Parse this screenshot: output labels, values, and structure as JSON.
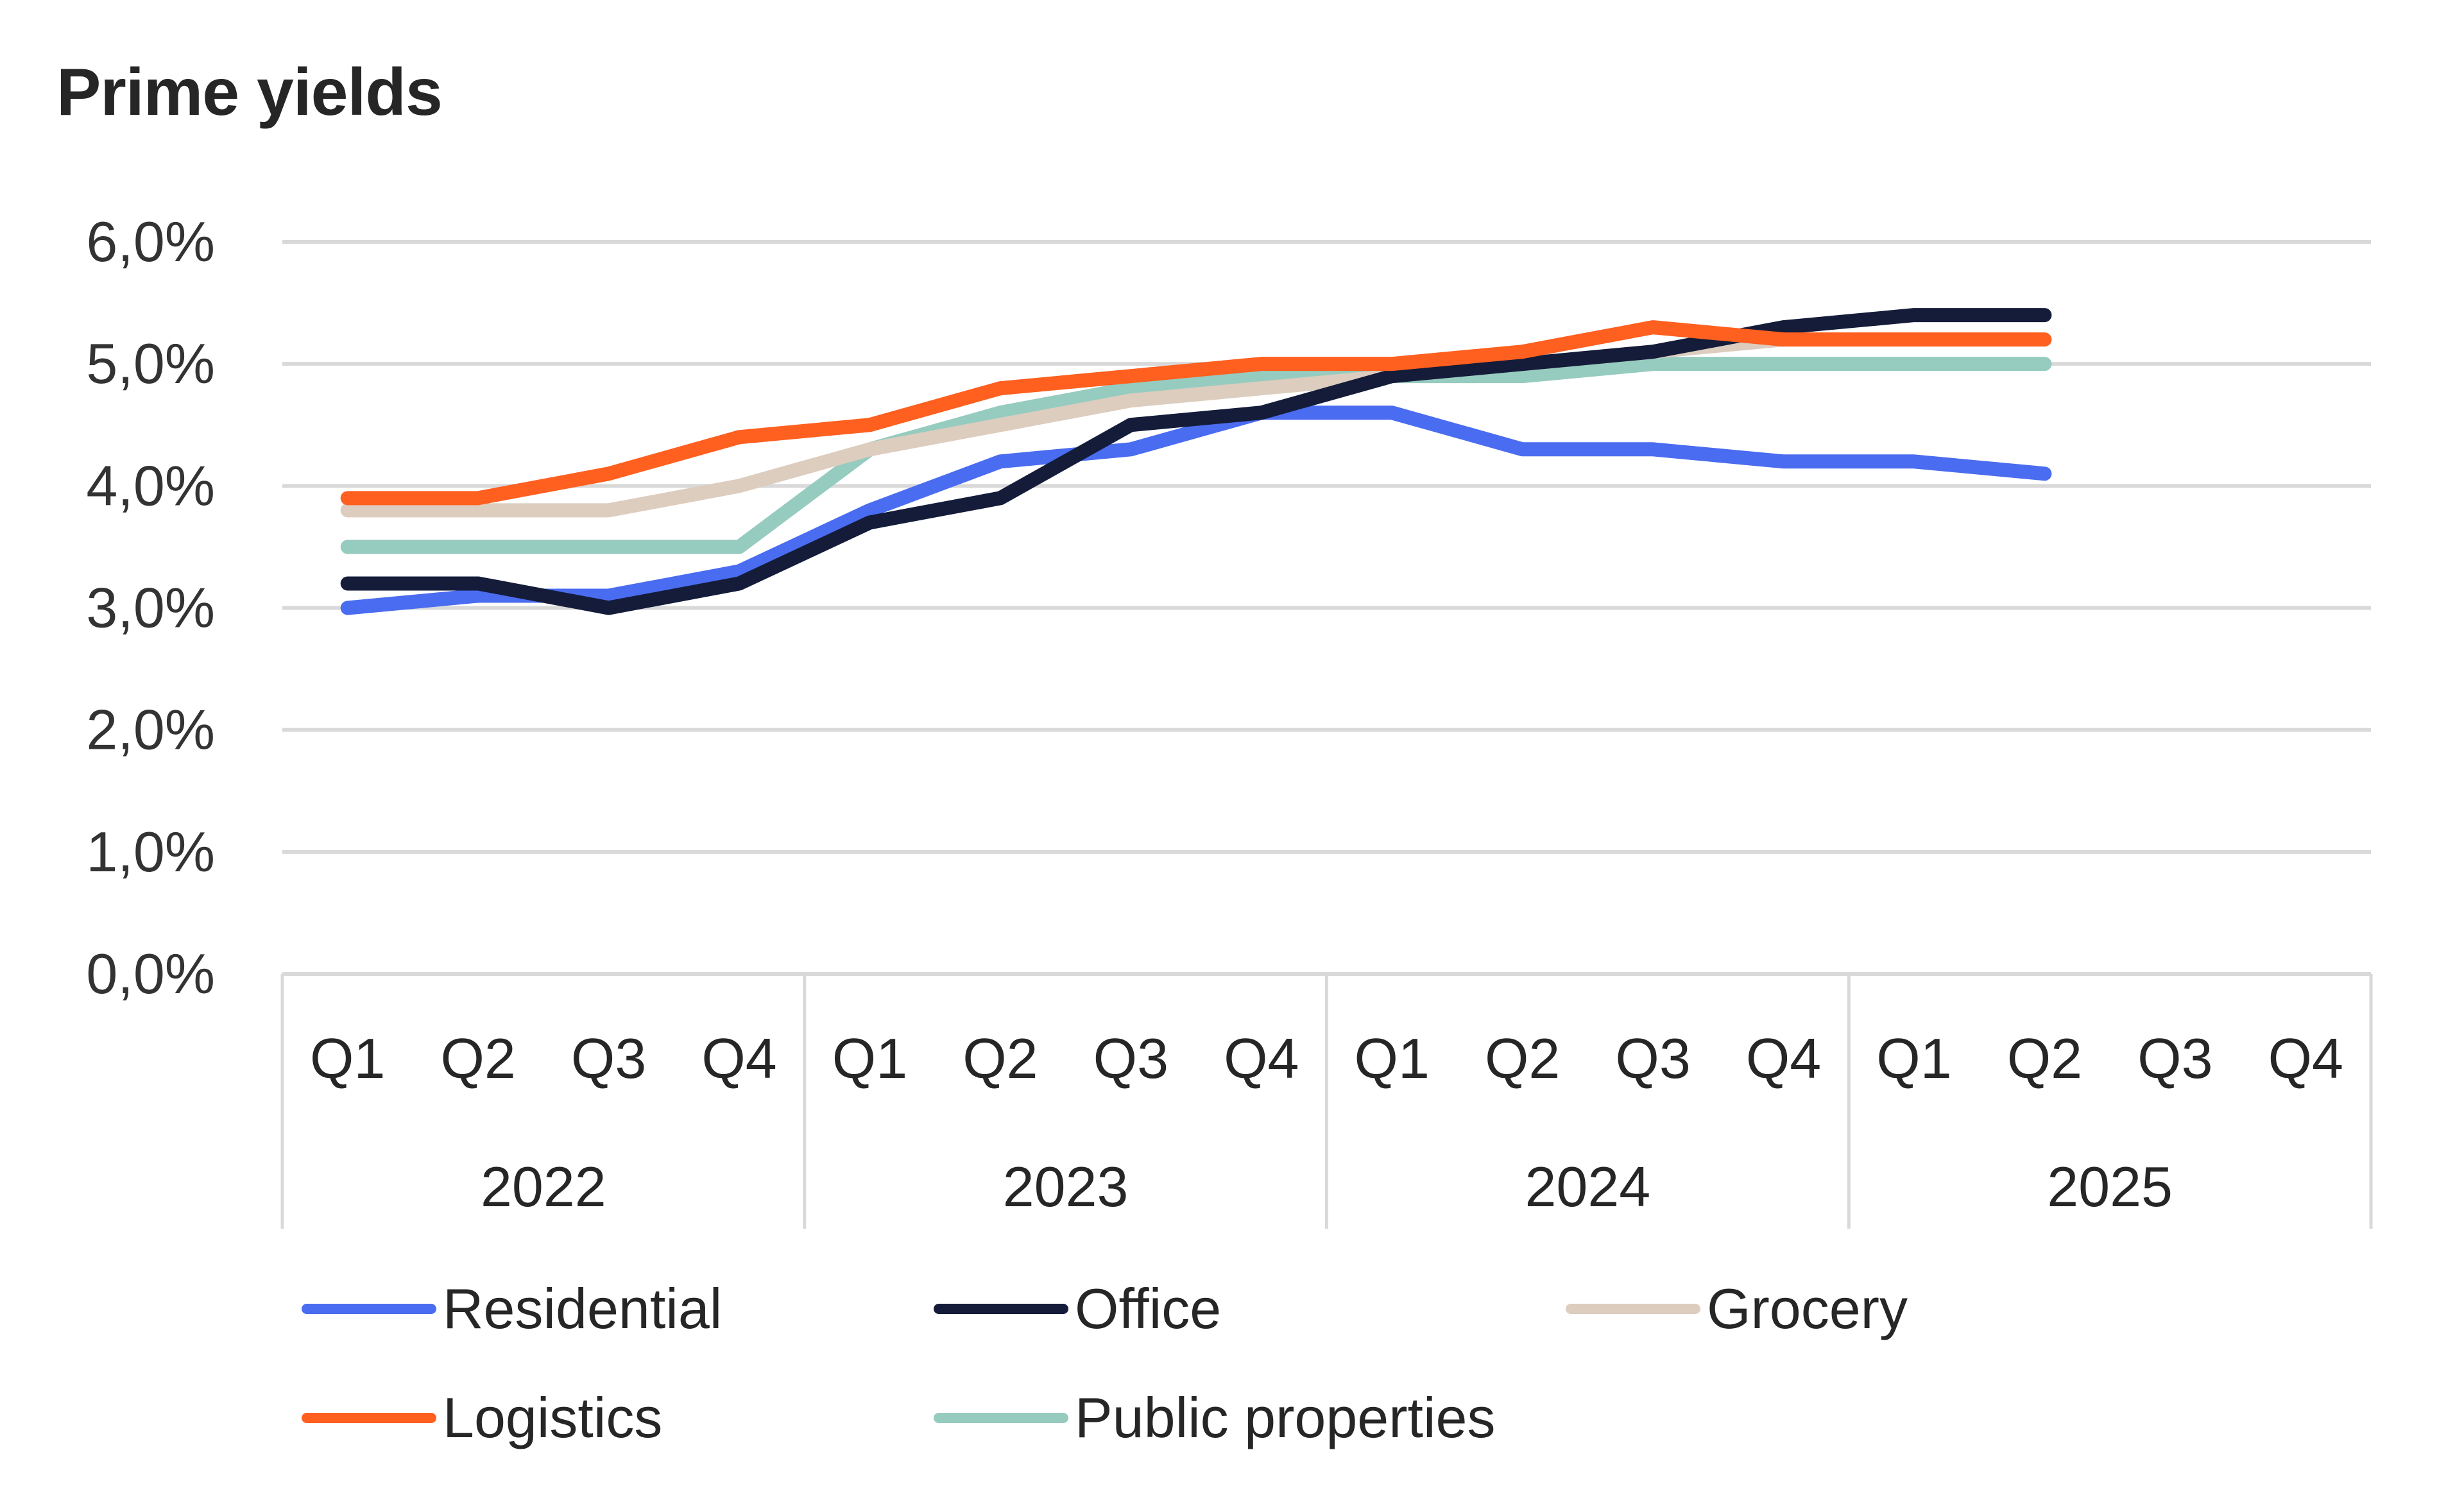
{
  "chart_data": {
    "type": "line",
    "title": "Prime yields",
    "xlabel": "",
    "ylabel": "",
    "ylim": [
      0,
      6
    ],
    "yticks": [
      0,
      1,
      2,
      3,
      4,
      5,
      6
    ],
    "ytick_labels": [
      "0,0%",
      "1,0%",
      "2,0%",
      "3,0%",
      "4,0%",
      "5,0%",
      "6,0%"
    ],
    "grid": true,
    "legend_position": "bottom",
    "years": [
      "2022",
      "2023",
      "2024",
      "2025"
    ],
    "quarters": [
      "Q1",
      "Q2",
      "Q3",
      "Q4"
    ],
    "x": [
      "2022 Q1",
      "2022 Q2",
      "2022 Q3",
      "2022 Q4",
      "2023 Q1",
      "2023 Q2",
      "2023 Q3",
      "2023 Q4",
      "2024 Q1",
      "2024 Q2",
      "2024 Q3",
      "2024 Q4",
      "2025 Q1",
      "2025 Q2",
      "2025 Q3",
      "2025 Q4"
    ],
    "series": [
      {
        "name": "Residential",
        "color": "#4a6cf0",
        "values": [
          3.0,
          3.1,
          3.1,
          3.3,
          3.8,
          4.2,
          4.3,
          4.6,
          4.6,
          4.3,
          4.3,
          4.2,
          4.2,
          4.1,
          null,
          null
        ]
      },
      {
        "name": "Office",
        "color": "#141c3a",
        "values": [
          3.2,
          3.2,
          3.0,
          3.2,
          3.7,
          3.9,
          4.5,
          4.6,
          4.9,
          5.0,
          5.1,
          5.3,
          5.4,
          5.4,
          null,
          null
        ]
      },
      {
        "name": "Grocery",
        "color": "#dccdbf",
        "values": [
          3.8,
          3.8,
          3.8,
          4.0,
          4.3,
          4.5,
          4.7,
          4.8,
          4.9,
          5.0,
          5.1,
          5.2,
          5.2,
          5.2,
          null,
          null
        ]
      },
      {
        "name": "Logistics",
        "color": "#ff5f1f",
        "values": [
          3.9,
          3.9,
          4.1,
          4.4,
          4.5,
          4.8,
          4.9,
          5.0,
          5.0,
          5.1,
          5.3,
          5.2,
          5.2,
          5.2,
          null,
          null
        ]
      },
      {
        "name": "Public properties",
        "color": "#96cbbf",
        "values": [
          3.5,
          3.5,
          3.5,
          3.5,
          4.3,
          4.6,
          4.8,
          4.9,
          4.9,
          4.9,
          5.0,
          5.0,
          5.0,
          5.0,
          null,
          null
        ]
      }
    ],
    "draw_order": [
      "Public properties",
      "Grocery",
      "Residential",
      "Office",
      "Logistics"
    ]
  }
}
